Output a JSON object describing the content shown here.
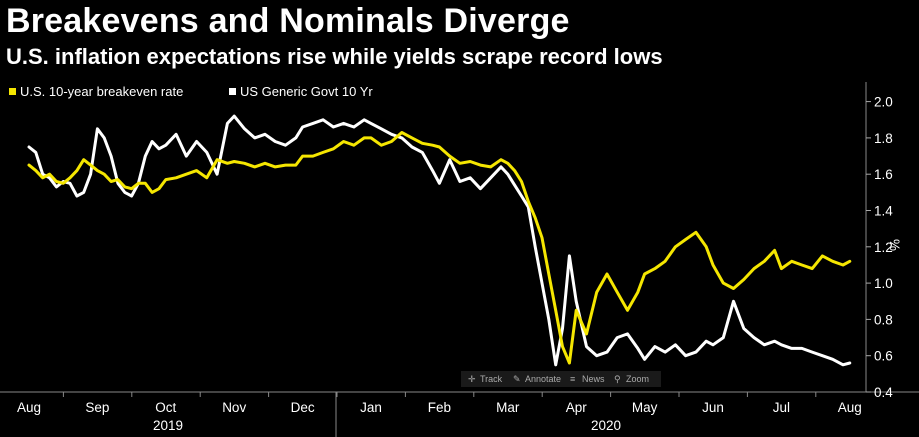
{
  "header": {
    "title": "Breakevens and Nominals Diverge",
    "subtitle": "U.S. inflation expectations rise while yields scrape record lows"
  },
  "toolbar": {
    "items": [
      {
        "icon": "crosshair-icon",
        "label": "Track"
      },
      {
        "icon": "pencil-icon",
        "label": "Annotate"
      },
      {
        "icon": "news-icon",
        "label": "News"
      },
      {
        "icon": "magnifier-icon",
        "label": "Zoom"
      }
    ]
  },
  "chart_data": {
    "type": "line",
    "title": "Breakevens and Nominals Diverge",
    "subtitle": "U.S. inflation expectations rise while yields scrape record lows",
    "ylabel": "%",
    "ylim": [
      0.4,
      2.1
    ],
    "yticks": [
      0.4,
      0.6,
      0.8,
      1.0,
      1.2,
      1.4,
      1.6,
      1.8,
      2.0
    ],
    "grid": false,
    "legend_position": "top-left",
    "months": [
      "Aug",
      "Sep",
      "Oct",
      "Nov",
      "Dec",
      "Jan",
      "Feb",
      "Mar",
      "Apr",
      "May",
      "Jun",
      "Jul",
      "Aug"
    ],
    "years": [
      "2019",
      "2020"
    ],
    "x_unit": "months since 1 Aug 2019 start",
    "colors": {
      "breakeven": "#f5e600",
      "treasury": "#ffffff"
    },
    "series": [
      {
        "name": "U.S. 10-year breakeven rate",
        "color": "#f5e600",
        "x": [
          0.0,
          0.1,
          0.2,
          0.3,
          0.4,
          0.5,
          0.6,
          0.7,
          0.8,
          0.9,
          1.0,
          1.1,
          1.2,
          1.3,
          1.4,
          1.5,
          1.6,
          1.7,
          1.8,
          1.9,
          2.0,
          2.15,
          2.3,
          2.45,
          2.6,
          2.75,
          2.9,
          3.0,
          3.15,
          3.3,
          3.45,
          3.6,
          3.75,
          3.9,
          4.0,
          4.15,
          4.3,
          4.45,
          4.6,
          4.75,
          4.9,
          5.0,
          5.15,
          5.3,
          5.45,
          5.6,
          5.75,
          5.9,
          6.0,
          6.15,
          6.3,
          6.45,
          6.6,
          6.75,
          6.9,
          7.0,
          7.1,
          7.2,
          7.3,
          7.4,
          7.5,
          7.6,
          7.7,
          7.8,
          7.9,
          8.0,
          8.15,
          8.3,
          8.45,
          8.6,
          8.75,
          8.9,
          9.0,
          9.15,
          9.3,
          9.45,
          9.6,
          9.75,
          9.9,
          10.0,
          10.15,
          10.3,
          10.45,
          10.6,
          10.75,
          10.9,
          11.0,
          11.15,
          11.3,
          11.45,
          11.6,
          11.75,
          11.9,
          12.0
        ],
        "values": [
          1.65,
          1.62,
          1.58,
          1.6,
          1.56,
          1.55,
          1.58,
          1.62,
          1.68,
          1.65,
          1.62,
          1.6,
          1.56,
          1.57,
          1.53,
          1.52,
          1.55,
          1.55,
          1.5,
          1.52,
          1.57,
          1.58,
          1.6,
          1.62,
          1.58,
          1.68,
          1.66,
          1.67,
          1.66,
          1.64,
          1.66,
          1.64,
          1.65,
          1.65,
          1.7,
          1.7,
          1.72,
          1.74,
          1.78,
          1.76,
          1.8,
          1.8,
          1.76,
          1.78,
          1.83,
          1.8,
          1.77,
          1.76,
          1.75,
          1.7,
          1.66,
          1.67,
          1.65,
          1.64,
          1.68,
          1.66,
          1.62,
          1.56,
          1.45,
          1.36,
          1.25,
          1.05,
          0.85,
          0.65,
          0.56,
          0.85,
          0.72,
          0.95,
          1.05,
          0.95,
          0.85,
          0.95,
          1.05,
          1.08,
          1.12,
          1.2,
          1.24,
          1.28,
          1.2,
          1.1,
          1.0,
          0.97,
          1.02,
          1.08,
          1.12,
          1.18,
          1.08,
          1.12,
          1.1,
          1.08,
          1.15,
          1.12,
          1.1,
          1.12
        ]
      },
      {
        "name": "US Generic Govt 10 Yr",
        "color": "#ffffff",
        "x": [
          0.0,
          0.1,
          0.2,
          0.3,
          0.4,
          0.5,
          0.6,
          0.7,
          0.8,
          0.9,
          1.0,
          1.1,
          1.2,
          1.3,
          1.4,
          1.5,
          1.6,
          1.7,
          1.8,
          1.9,
          2.0,
          2.15,
          2.3,
          2.45,
          2.6,
          2.75,
          2.9,
          3.0,
          3.15,
          3.3,
          3.45,
          3.6,
          3.75,
          3.9,
          4.0,
          4.15,
          4.3,
          4.45,
          4.6,
          4.75,
          4.9,
          5.0,
          5.15,
          5.3,
          5.45,
          5.6,
          5.75,
          5.9,
          6.0,
          6.15,
          6.3,
          6.45,
          6.6,
          6.75,
          6.9,
          7.0,
          7.1,
          7.2,
          7.3,
          7.4,
          7.5,
          7.6,
          7.7,
          7.8,
          7.9,
          8.0,
          8.15,
          8.3,
          8.45,
          8.6,
          8.75,
          8.9,
          9.0,
          9.15,
          9.3,
          9.45,
          9.6,
          9.75,
          9.9,
          10.0,
          10.15,
          10.3,
          10.45,
          10.6,
          10.75,
          10.9,
          11.0,
          11.15,
          11.3,
          11.45,
          11.6,
          11.75,
          11.9,
          12.0
        ],
        "values": [
          1.75,
          1.72,
          1.6,
          1.58,
          1.53,
          1.56,
          1.55,
          1.48,
          1.5,
          1.6,
          1.85,
          1.8,
          1.7,
          1.55,
          1.5,
          1.48,
          1.55,
          1.7,
          1.78,
          1.74,
          1.76,
          1.82,
          1.7,
          1.78,
          1.72,
          1.6,
          1.88,
          1.92,
          1.85,
          1.8,
          1.82,
          1.78,
          1.76,
          1.8,
          1.86,
          1.88,
          1.9,
          1.86,
          1.88,
          1.86,
          1.9,
          1.88,
          1.85,
          1.82,
          1.8,
          1.75,
          1.72,
          1.62,
          1.55,
          1.68,
          1.56,
          1.58,
          1.52,
          1.58,
          1.64,
          1.6,
          1.54,
          1.48,
          1.42,
          1.2,
          1.0,
          0.8,
          0.55,
          0.75,
          1.15,
          0.9,
          0.65,
          0.6,
          0.62,
          0.7,
          0.72,
          0.64,
          0.58,
          0.65,
          0.62,
          0.66,
          0.6,
          0.62,
          0.68,
          0.66,
          0.7,
          0.9,
          0.75,
          0.7,
          0.66,
          0.68,
          0.66,
          0.64,
          0.64,
          0.62,
          0.6,
          0.58,
          0.55,
          0.56
        ]
      }
    ]
  }
}
